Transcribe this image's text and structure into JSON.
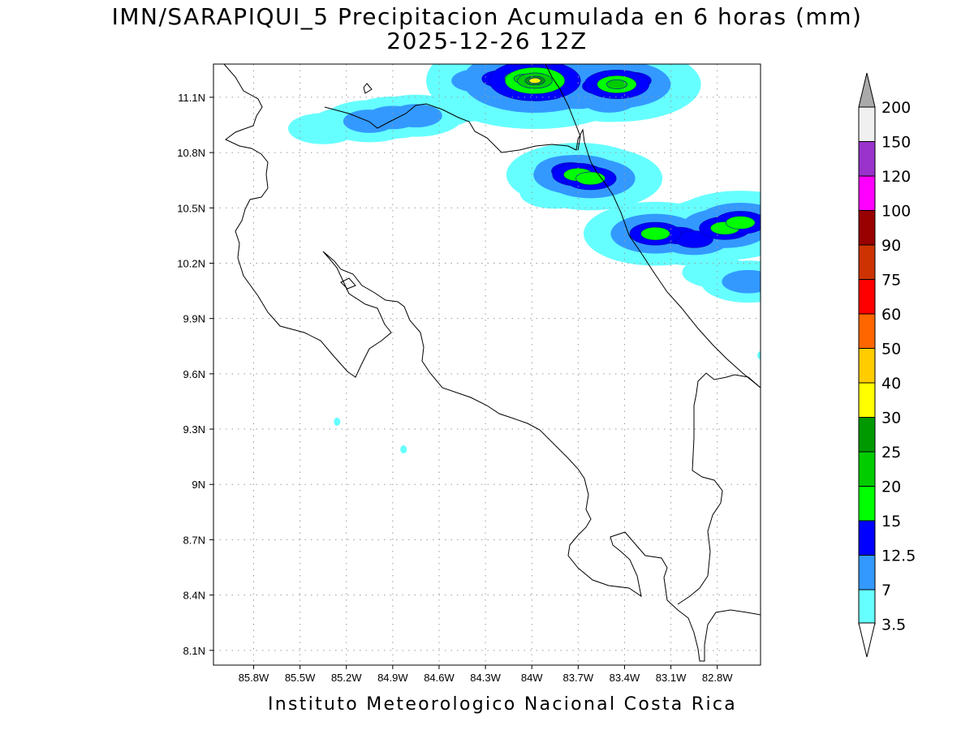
{
  "title": {
    "line1": "IMN/SARAPIQUI_5 Precipitacion Acumulada en 6 horas (mm)",
    "line2": "2025-12-26 12Z"
  },
  "footer": "Instituto Meteorologico Nacional Costa Rica",
  "axes": {
    "lon_min": -86.06,
    "lon_max": -82.52,
    "lat_min": 8.02,
    "lat_max": 11.28,
    "x_ticks": [
      {
        "value": -85.8,
        "label": "85.8W"
      },
      {
        "value": -85.5,
        "label": "85.5W"
      },
      {
        "value": -85.2,
        "label": "85.2W"
      },
      {
        "value": -84.9,
        "label": "84.9W"
      },
      {
        "value": -84.6,
        "label": "84.6W"
      },
      {
        "value": -84.3,
        "label": "84.3W"
      },
      {
        "value": -84.0,
        "label": "84W"
      },
      {
        "value": -83.7,
        "label": "83.7W"
      },
      {
        "value": -83.4,
        "label": "83.4W"
      },
      {
        "value": -83.1,
        "label": "83.1W"
      },
      {
        "value": -82.8,
        "label": "82.8W"
      }
    ],
    "y_ticks": [
      {
        "value": 11.1,
        "label": "11.1N"
      },
      {
        "value": 10.8,
        "label": "10.8N"
      },
      {
        "value": 10.5,
        "label": "10.5N"
      },
      {
        "value": 10.2,
        "label": "10.2N"
      },
      {
        "value": 9.9,
        "label": "9.9N"
      },
      {
        "value": 9.6,
        "label": "9.6N"
      },
      {
        "value": 9.3,
        "label": "9.3N"
      },
      {
        "value": 9.0,
        "label": "9N"
      },
      {
        "value": 8.7,
        "label": "8.7N"
      },
      {
        "value": 8.4,
        "label": "8.4N"
      },
      {
        "value": 8.1,
        "label": "8.1N"
      }
    ],
    "grid": true
  },
  "colorbar": {
    "colors": [
      "#ffffff",
      "#66ffff",
      "#3399ff",
      "#0000ff",
      "#00ff00",
      "#00cc00",
      "#009900",
      "#ffff00",
      "#ffcc00",
      "#ff6600",
      "#ff0000",
      "#cc3300",
      "#990000",
      "#ff00ff",
      "#9933cc",
      "#f0f0f0",
      "#aaaaaa"
    ],
    "labels": [
      "3.5",
      "7",
      "12.5",
      "15",
      "20",
      "25",
      "30",
      "40",
      "50",
      "60",
      "75",
      "90",
      "100",
      "120",
      "150",
      "200"
    ]
  },
  "precip_fields": [
    {
      "name": "north-central-band",
      "cells": [
        {
          "lon": -85.35,
          "lat": 10.93,
          "level": 1
        },
        {
          "lon": -85.2,
          "lat": 10.96,
          "level": 1
        },
        {
          "lon": -85.05,
          "lat": 10.97,
          "level": 2
        },
        {
          "lon": -84.9,
          "lat": 10.99,
          "level": 2
        },
        {
          "lon": -84.75,
          "lat": 11.0,
          "level": 2
        },
        {
          "lon": -84.6,
          "lat": 11.02,
          "level": 1
        },
        {
          "lon": -84.45,
          "lat": 11.05,
          "level": 1
        },
        {
          "lon": -84.3,
          "lat": 11.1,
          "level": 1
        },
        {
          "lon": -84.35,
          "lat": 11.19,
          "level": 2
        },
        {
          "lon": -84.2,
          "lat": 11.2,
          "level": 3
        },
        {
          "lon": -84.05,
          "lat": 11.2,
          "level": 5
        },
        {
          "lon": -83.98,
          "lat": 11.19,
          "level": 7
        },
        {
          "lon": -83.85,
          "lat": 11.15,
          "level": 3
        },
        {
          "lon": -83.7,
          "lat": 11.1,
          "level": 2
        },
        {
          "lon": -83.55,
          "lat": 11.16,
          "level": 3
        },
        {
          "lon": -83.45,
          "lat": 11.17,
          "level": 5
        },
        {
          "lon": -83.35,
          "lat": 11.19,
          "level": 3
        },
        {
          "lon": -83.5,
          "lat": 11.08,
          "level": 2
        }
      ]
    },
    {
      "name": "caribbean-coast-band",
      "cells": [
        {
          "lon": -83.85,
          "lat": 10.58,
          "level": 1
        },
        {
          "lon": -83.75,
          "lat": 10.7,
          "level": 3
        },
        {
          "lon": -83.7,
          "lat": 10.68,
          "level": 4
        },
        {
          "lon": -83.62,
          "lat": 10.66,
          "level": 4
        },
        {
          "lon": -83.55,
          "lat": 10.65,
          "level": 2
        },
        {
          "lon": -83.3,
          "lat": 10.4,
          "level": 1
        },
        {
          "lon": -83.2,
          "lat": 10.36,
          "level": 4
        },
        {
          "lon": -83.05,
          "lat": 10.35,
          "level": 3
        },
        {
          "lon": -82.95,
          "lat": 10.33,
          "level": 3
        },
        {
          "lon": -82.75,
          "lat": 10.39,
          "level": 4
        },
        {
          "lon": -82.65,
          "lat": 10.42,
          "level": 4
        },
        {
          "lon": -82.6,
          "lat": 10.1,
          "level": 2
        },
        {
          "lon": -82.8,
          "lat": 10.15,
          "level": 1
        }
      ]
    }
  ]
}
